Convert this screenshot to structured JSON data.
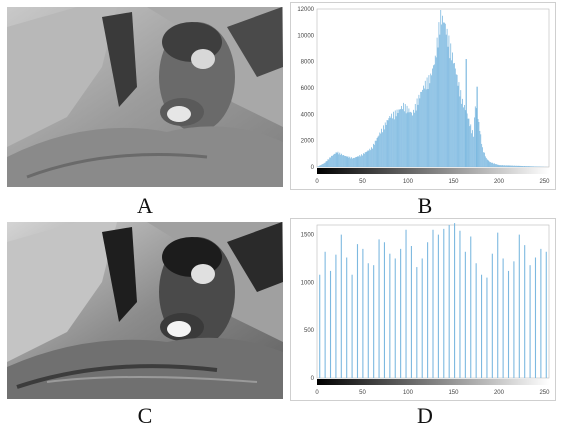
{
  "captions": {
    "a": "A",
    "b": "B",
    "c": "C",
    "d": "D"
  },
  "colors": {
    "bar": "#7db9e0"
  },
  "chart_data": [
    {
      "type": "bar",
      "panel": "B",
      "xlim": [
        0,
        255
      ],
      "ylim": [
        0,
        12000
      ],
      "x_ticks": [
        "0",
        "50",
        "100",
        "150",
        "200",
        "250"
      ],
      "y_ticks": [
        "0",
        "2000",
        "4000",
        "6000",
        "8000",
        "10000",
        "12000"
      ],
      "profile_points": [
        [
          0,
          0
        ],
        [
          8,
          300
        ],
        [
          15,
          800
        ],
        [
          22,
          1200
        ],
        [
          30,
          900
        ],
        [
          40,
          700
        ],
        [
          50,
          1000
        ],
        [
          60,
          1500
        ],
        [
          70,
          2800
        ],
        [
          80,
          4000
        ],
        [
          90,
          4500
        ],
        [
          95,
          4900
        ],
        [
          100,
          4600
        ],
        [
          105,
          4200
        ],
        [
          110,
          5200
        ],
        [
          118,
          6500
        ],
        [
          125,
          7200
        ],
        [
          130,
          8600
        ],
        [
          133,
          10500
        ],
        [
          136,
          12000
        ],
        [
          140,
          11500
        ],
        [
          145,
          10000
        ],
        [
          150,
          8500
        ],
        [
          155,
          6800
        ],
        [
          160,
          5200
        ],
        [
          165,
          4200
        ],
        [
          170,
          3000
        ],
        [
          172,
          2600
        ],
        [
          174,
          5000
        ],
        [
          176,
          4200
        ],
        [
          178,
          3500
        ],
        [
          182,
          1500
        ],
        [
          186,
          700
        ],
        [
          190,
          400
        ],
        [
          200,
          150
        ],
        [
          255,
          0
        ]
      ],
      "spikes": [
        [
          164,
          8200
        ],
        [
          176,
          6100
        ]
      ]
    },
    {
      "type": "bar",
      "panel": "D",
      "xlim": [
        0,
        255
      ],
      "ylim": [
        0,
        1600
      ],
      "x_ticks": [
        "0",
        "50",
        "100",
        "150",
        "200",
        "250"
      ],
      "y_ticks": [
        "0",
        "500",
        "1000",
        "1500"
      ],
      "values": [
        1080,
        1320,
        1120,
        1290,
        1500,
        1260,
        1080,
        1400,
        1350,
        1200,
        1180,
        1450,
        1420,
        1300,
        1250,
        1350,
        1550,
        1380,
        1160,
        1250,
        1420,
        1550,
        1500,
        1560,
        1600,
        1620,
        1540,
        1320,
        1480,
        1200,
        1080,
        1050,
        1300,
        1520,
        1250,
        1120,
        1220,
        1500,
        1390,
        1180,
        1260,
        1350,
        1320
      ]
    }
  ]
}
